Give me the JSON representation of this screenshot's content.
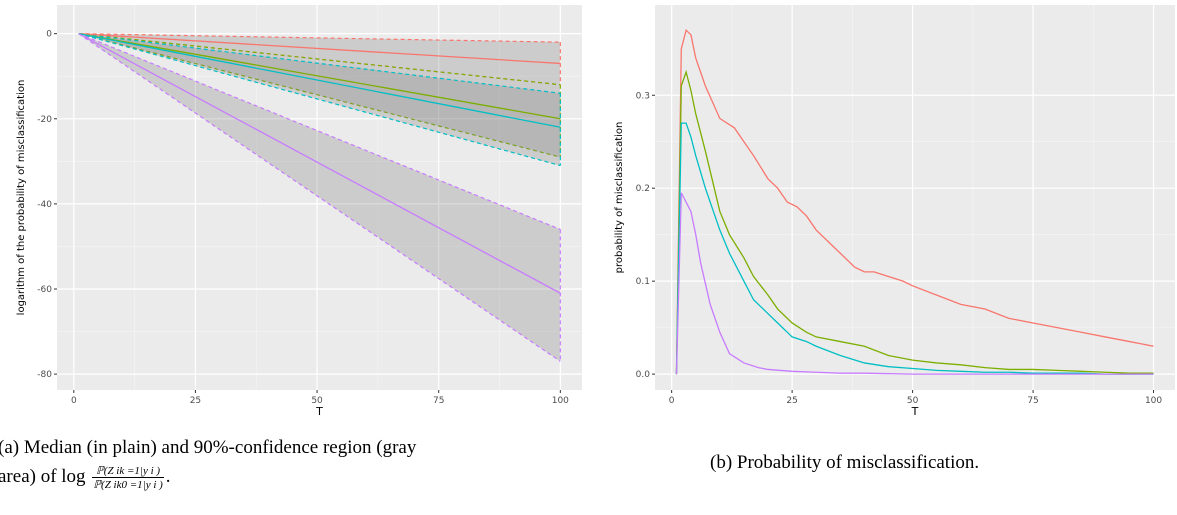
{
  "chart_data": [
    {
      "type": "line",
      "panel": "a",
      "xlabel": "T",
      "ylabel": "logarithm of the probability of misclassification",
      "xlim": [
        1,
        100
      ],
      "ylim": [
        -80,
        3
      ],
      "xticks": [
        0,
        25,
        50,
        75,
        100
      ],
      "yticks": [
        0,
        -20,
        -40,
        -60,
        -80
      ],
      "grid": true,
      "legend": "none",
      "series": [
        {
          "color": "#F8766D",
          "x": [
            1,
            100
          ],
          "median": [
            0,
            -7
          ],
          "lower": [
            0,
            -12
          ],
          "upper": [
            0,
            -2
          ]
        },
        {
          "color": "#7CAE00",
          "x": [
            1,
            100
          ],
          "median": [
            0,
            -20
          ],
          "lower": [
            0,
            -29
          ],
          "upper": [
            0,
            -12
          ]
        },
        {
          "color": "#00BFC4",
          "x": [
            1,
            100
          ],
          "median": [
            0,
            -22
          ],
          "lower": [
            0,
            -31
          ],
          "upper": [
            0,
            -14
          ]
        },
        {
          "color": "#C77CFF",
          "x": [
            1,
            100
          ],
          "median": [
            0,
            -61
          ],
          "lower": [
            0,
            -77
          ],
          "upper": [
            0,
            -46
          ]
        }
      ]
    },
    {
      "type": "line",
      "panel": "b",
      "xlabel": "T",
      "ylabel": "probability of misclassification",
      "xlim": [
        1,
        100
      ],
      "ylim": [
        0,
        0.38
      ],
      "xticks": [
        0,
        25,
        50,
        75,
        100
      ],
      "yticks": [
        0.0,
        0.1,
        0.2,
        0.3
      ],
      "ytick_labels": [
        "0.0",
        "0.1",
        "0.2",
        "0.3"
      ],
      "grid": true,
      "legend": "none",
      "series": [
        {
          "color": "#F8766D",
          "x": [
            1,
            2,
            3,
            4,
            5,
            7,
            10,
            13,
            15,
            17,
            20,
            22,
            24,
            26,
            28,
            30,
            33,
            35,
            38,
            40,
            42,
            45,
            48,
            50,
            55,
            60,
            65,
            70,
            75,
            80,
            85,
            90,
            95,
            100
          ],
          "y": [
            0.0,
            0.35,
            0.37,
            0.365,
            0.34,
            0.31,
            0.275,
            0.265,
            0.25,
            0.235,
            0.21,
            0.2,
            0.185,
            0.18,
            0.17,
            0.155,
            0.14,
            0.13,
            0.115,
            0.11,
            0.11,
            0.105,
            0.1,
            0.095,
            0.085,
            0.075,
            0.07,
            0.06,
            0.055,
            0.05,
            0.045,
            0.04,
            0.035,
            0.03
          ]
        },
        {
          "color": "#7CAE00",
          "x": [
            1,
            2,
            3,
            4,
            5,
            7,
            10,
            12,
            15,
            17,
            20,
            22,
            25,
            28,
            30,
            35,
            40,
            45,
            50,
            55,
            60,
            65,
            70,
            75,
            80,
            85,
            90,
            95,
            100
          ],
          "y": [
            0.0,
            0.31,
            0.325,
            0.305,
            0.28,
            0.24,
            0.175,
            0.15,
            0.125,
            0.105,
            0.085,
            0.07,
            0.055,
            0.045,
            0.04,
            0.035,
            0.03,
            0.02,
            0.015,
            0.012,
            0.01,
            0.007,
            0.005,
            0.005,
            0.004,
            0.003,
            0.002,
            0.001,
            0.001
          ]
        },
        {
          "color": "#00BFC4",
          "x": [
            1,
            2,
            3,
            4,
            5,
            7,
            10,
            12,
            15,
            17,
            20,
            22,
            25,
            28,
            30,
            35,
            40,
            45,
            50,
            55,
            60,
            65,
            70,
            75,
            80,
            85,
            90,
            95,
            100
          ],
          "y": [
            0.0,
            0.27,
            0.27,
            0.255,
            0.235,
            0.2,
            0.155,
            0.13,
            0.1,
            0.08,
            0.065,
            0.055,
            0.04,
            0.035,
            0.03,
            0.02,
            0.012,
            0.008,
            0.006,
            0.004,
            0.003,
            0.002,
            0.002,
            0.001,
            0.001,
            0.001,
            0.0,
            0.0,
            0.0
          ]
        },
        {
          "color": "#C77CFF",
          "x": [
            1,
            2,
            3,
            4,
            5,
            6,
            8,
            10,
            12,
            15,
            18,
            20,
            25,
            30,
            35,
            40,
            50,
            60,
            70,
            80,
            90,
            100
          ],
          "y": [
            0.0,
            0.195,
            0.185,
            0.175,
            0.15,
            0.12,
            0.075,
            0.045,
            0.022,
            0.012,
            0.007,
            0.005,
            0.003,
            0.002,
            0.001,
            0.001,
            0.0,
            0.0,
            0.0,
            0.0,
            0.0,
            0.0
          ]
        }
      ]
    }
  ],
  "captions": {
    "a_line1": "(a) Median (in plain) and 90%-confidence region (gray",
    "a_line2_prefix": "area) of log ",
    "a_frac_num": "ℙ(Z ik =1|y i )",
    "a_frac_den": "ℙ(Z ik0 =1|y i )",
    "a_line2_suffix": ".",
    "b": "(b) Probability of misclassification."
  }
}
